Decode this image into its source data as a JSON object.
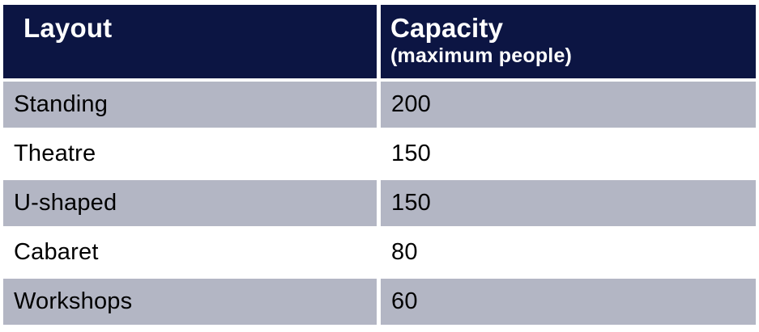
{
  "table": {
    "header": {
      "col1": {
        "title": "Layout"
      },
      "col2": {
        "title": "Capacity",
        "subtitle": "(maximum people)"
      }
    },
    "rows": [
      {
        "layout": "Standing",
        "capacity": "200"
      },
      {
        "layout": "Theatre",
        "capacity": "150"
      },
      {
        "layout": "U-shaped",
        "capacity": "150"
      },
      {
        "layout": "Cabaret",
        "capacity": "80"
      },
      {
        "layout": "Workshops",
        "capacity": "60"
      }
    ],
    "colors": {
      "header_bg": "#0c1543",
      "header_text": "#ffffff",
      "row_shaded_bg": "#b3b6c4",
      "row_plain_bg": "#ffffff",
      "row_text": "#000000",
      "gutter": "#ffffff"
    }
  },
  "chart_data": {
    "type": "table",
    "columns": [
      "Layout",
      "Capacity (maximum people)"
    ],
    "rows": [
      [
        "Standing",
        200
      ],
      [
        "Theatre",
        150
      ],
      [
        "U-shaped",
        150
      ],
      [
        "Cabaret",
        80
      ],
      [
        "Workshops",
        60
      ]
    ]
  }
}
